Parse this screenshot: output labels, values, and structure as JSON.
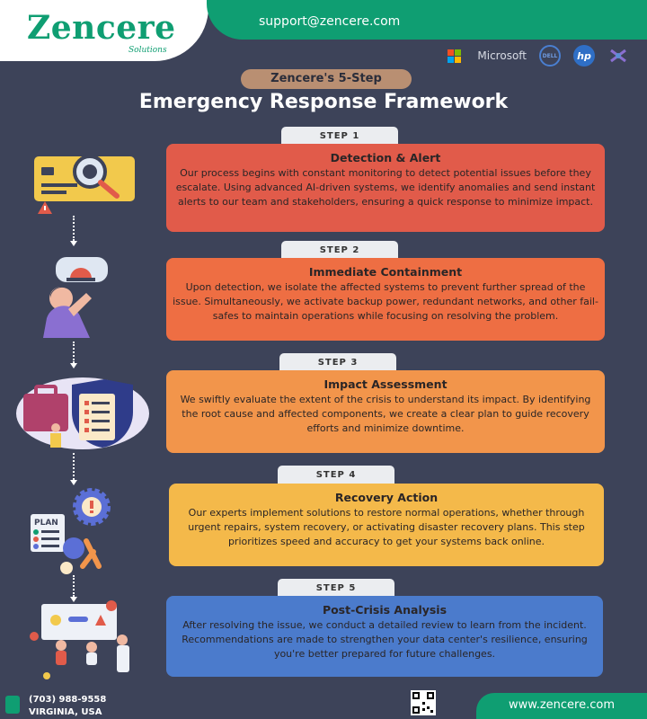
{
  "header": {
    "brand": "Zencere",
    "brand_sub": "Solutions",
    "support_email": "support@zencere.com",
    "partners": {
      "microsoft": "Microsoft",
      "dell": "DELL",
      "hp": "hp"
    }
  },
  "title": {
    "pill": "Zencere's 5-Step",
    "main": "Emergency Response Framework"
  },
  "steps": [
    {
      "tab": "STEP 1",
      "title": "Detection & Alert",
      "body": "Our process begins with constant monitoring to detect potential issues before they escalate. Using advanced AI-driven systems, we identify anomalies and send instant alerts to our team and stakeholders, ensuring a quick response to minimize impact.",
      "color": "#e15b4a"
    },
    {
      "tab": "STEP 2",
      "title": "Immediate Containment",
      "body": "Upon detection, we isolate the affected systems to prevent further spread of the issue. Simultaneously, we activate backup power, redundant networks, and other fail-safes to maintain operations while focusing on resolving the problem.",
      "color": "#ee6e43"
    },
    {
      "tab": "STEP 3",
      "title": "Impact Assessment",
      "body": "We swiftly evaluate the extent of the crisis to understand its impact. By identifying the root cause and affected components, we create a clear plan to guide recovery efforts and minimize downtime.",
      "color": "#f2954b"
    },
    {
      "tab": "STEP 4",
      "title": "Recovery Action",
      "body": "Our experts implement solutions to restore normal operations, whether through urgent repairs, system recovery, or activating disaster recovery plans. This step prioritizes speed and accuracy to get your systems back online.",
      "color": "#f4b94a"
    },
    {
      "tab": "STEP 5",
      "title": "Post-Crisis Analysis",
      "body": "After resolving the issue, we conduct a detailed review to learn from the incident. Recommendations are made to strengthen your data center's resilience, ensuring you're better prepared for future challenges.",
      "color": "#4b7bcc"
    }
  ],
  "footer": {
    "phone": "(703) 988-9558",
    "location": "VIRGINIA, USA",
    "website": "www.zencere.com"
  },
  "illustration_labels": {
    "plan": "PLAN"
  }
}
